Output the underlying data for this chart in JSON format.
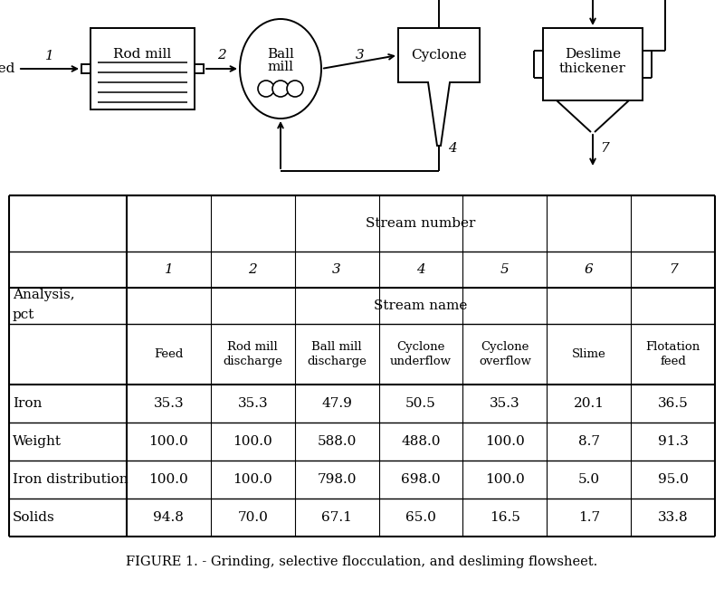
{
  "title": "FIGURE 1. - Grinding, selective flocculation, and desliming flowsheet.",
  "stream_numbers": [
    "1",
    "2",
    "3",
    "4",
    "5",
    "6",
    "7"
  ],
  "stream_names": [
    "Feed",
    "Rod mill\ndischarge",
    "Ball mill\ndischarge",
    "Cyclone\nunderflow",
    "Cyclone\noverflow",
    "Slime",
    "Flotation\nfeed"
  ],
  "row_labels": [
    "Iron",
    "Weight",
    "Iron distribution",
    "Solids"
  ],
  "data_values": [
    [
      "35.3",
      "35.3",
      "47.9",
      "50.5",
      "35.3",
      "20.1",
      "36.5"
    ],
    [
      "100.0",
      "100.0",
      "588.0",
      "488.0",
      "100.0",
      "8.7",
      "91.3"
    ],
    [
      "100.0",
      "100.0",
      "798.0",
      "698.0",
      "100.0",
      "5.0",
      "95.0"
    ],
    [
      "94.8",
      "70.0",
      "67.1",
      "65.0",
      "16.5",
      "1.7",
      "33.8"
    ]
  ],
  "bg_color": "#ffffff"
}
